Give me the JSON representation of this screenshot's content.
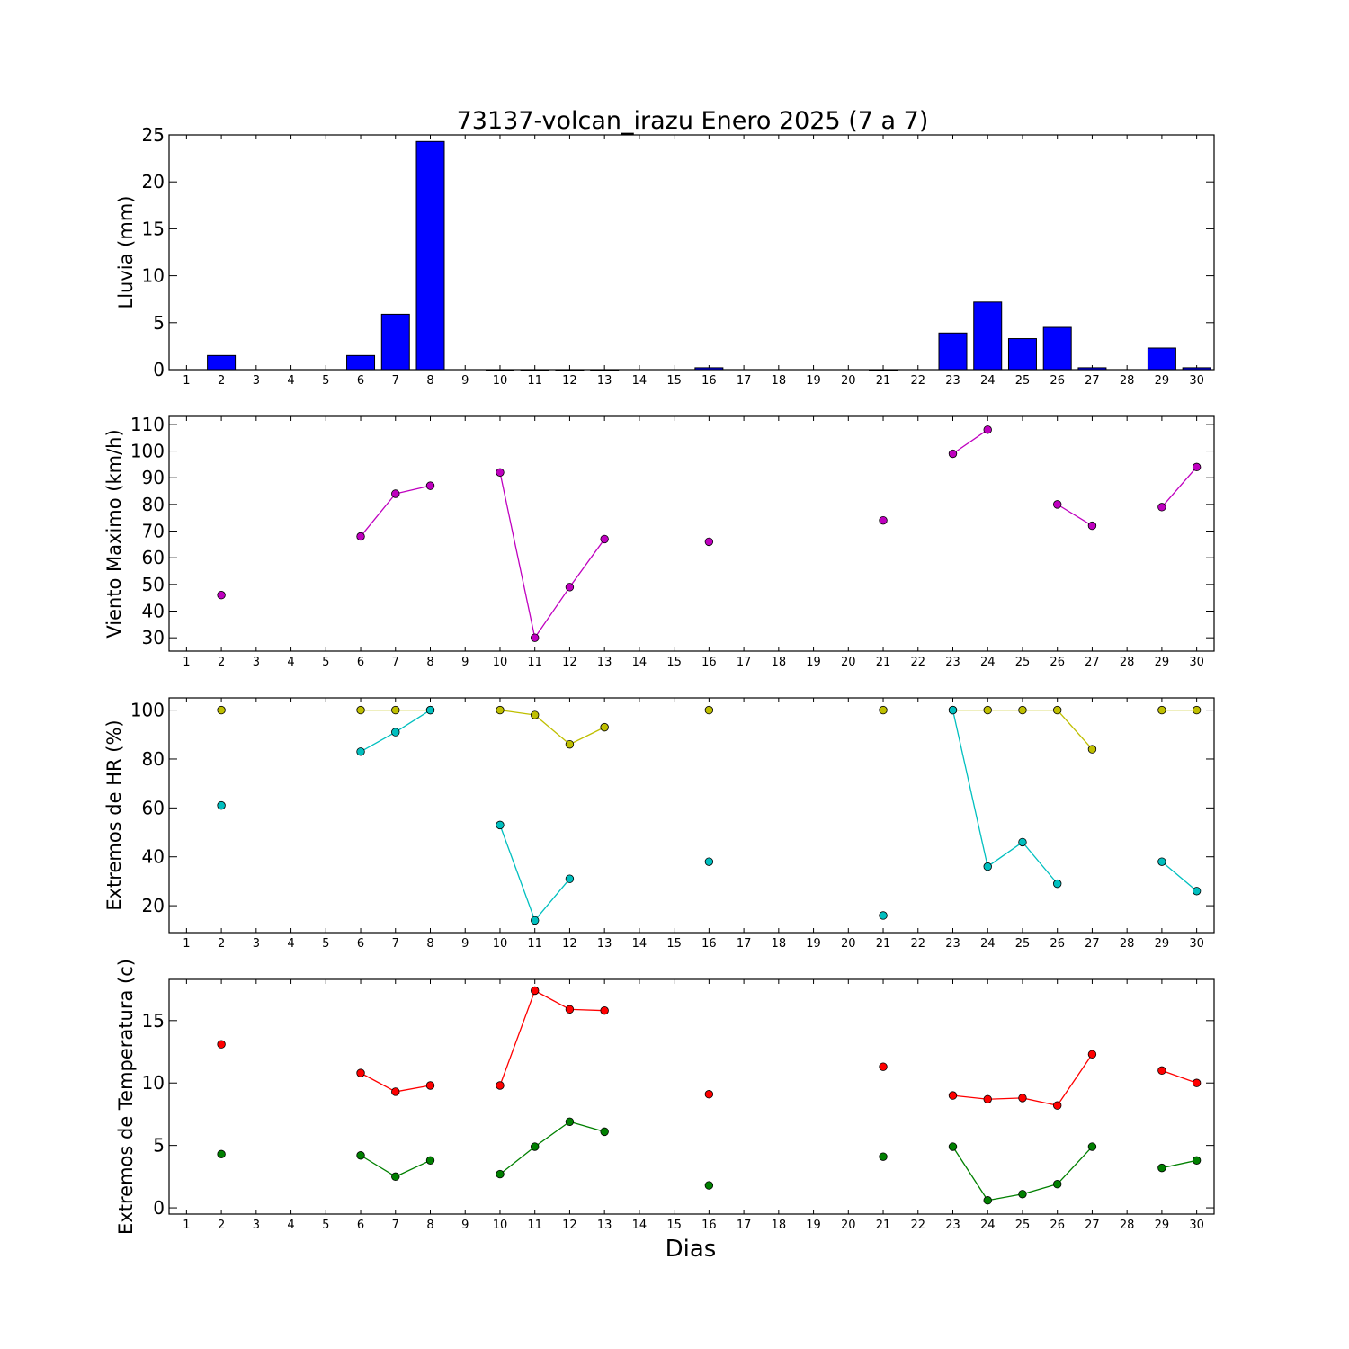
{
  "title": "73137-volcan_irazu Enero 2025  (7 a 7)",
  "xlabel": "Dias",
  "chart_data": [
    {
      "type": "bar",
      "ylabel": "Lluvia (mm)",
      "ylim": [
        0,
        25
      ],
      "yticks": [
        0,
        5,
        10,
        15,
        20,
        25
      ],
      "xlim": [
        0.5,
        30.5
      ],
      "categories": [
        1,
        2,
        3,
        4,
        5,
        6,
        7,
        8,
        9,
        10,
        11,
        12,
        13,
        14,
        15,
        16,
        17,
        18,
        19,
        20,
        21,
        22,
        23,
        24,
        25,
        26,
        27,
        28,
        29,
        30
      ],
      "values": [
        null,
        1.5,
        null,
        null,
        null,
        1.5,
        5.9,
        24.3,
        null,
        0,
        0,
        0,
        0,
        null,
        null,
        0.2,
        null,
        null,
        null,
        null,
        0,
        null,
        3.9,
        7.2,
        3.3,
        4.5,
        0.2,
        null,
        2.3,
        0.2
      ],
      "color": "#0000ff"
    },
    {
      "type": "line",
      "ylabel": "Viento Maximo (km/h)",
      "ylim": [
        25,
        113
      ],
      "yticks": [
        30,
        40,
        50,
        60,
        70,
        80,
        90,
        100,
        110
      ],
      "xlim": [
        0.5,
        30.5
      ],
      "series": [
        {
          "color": "#bf00bf",
          "values": [
            null,
            46,
            null,
            null,
            null,
            68,
            84,
            87,
            null,
            92,
            30,
            49,
            67,
            null,
            null,
            66,
            null,
            null,
            null,
            null,
            74,
            null,
            99,
            108,
            null,
            80,
            72,
            null,
            79,
            94
          ]
        }
      ]
    },
    {
      "type": "line",
      "ylabel": "Extremos de HR (%)",
      "ylim": [
        9,
        105
      ],
      "yticks": [
        20,
        40,
        60,
        80,
        100
      ],
      "xlim": [
        0.5,
        30.5
      ],
      "series": [
        {
          "color": "#bfbf00",
          "values": [
            null,
            100,
            null,
            null,
            null,
            100,
            100,
            100,
            null,
            100,
            98,
            86,
            93,
            null,
            null,
            100,
            null,
            null,
            null,
            null,
            100,
            null,
            100,
            100,
            100,
            100,
            84,
            null,
            100,
            100
          ]
        },
        {
          "color": "#00bfbf",
          "values": [
            null,
            61,
            null,
            null,
            null,
            83,
            91,
            100,
            null,
            53,
            14,
            31,
            null,
            null,
            null,
            38,
            null,
            null,
            null,
            null,
            16,
            null,
            100,
            36,
            46,
            29,
            null,
            null,
            38,
            26
          ]
        }
      ]
    },
    {
      "type": "line",
      "ylabel": "Extremos de Temperatura (c)",
      "ylim": [
        -0.5,
        18.3
      ],
      "yticks": [
        0,
        5,
        10,
        15
      ],
      "xlim": [
        0.5,
        30.5
      ],
      "series": [
        {
          "color": "#ff0000",
          "values": [
            null,
            13.1,
            null,
            null,
            null,
            10.8,
            9.3,
            9.8,
            null,
            9.8,
            17.4,
            15.9,
            15.8,
            null,
            null,
            9.1,
            null,
            null,
            null,
            null,
            11.3,
            null,
            9.0,
            8.7,
            8.8,
            8.2,
            12.3,
            null,
            11.0,
            10.0
          ]
        },
        {
          "color": "#008000",
          "values": [
            null,
            4.3,
            null,
            null,
            null,
            4.2,
            2.5,
            3.8,
            null,
            2.7,
            4.9,
            6.9,
            6.1,
            null,
            null,
            1.8,
            null,
            null,
            null,
            null,
            4.1,
            null,
            4.9,
            0.6,
            1.1,
            1.9,
            4.9,
            null,
            3.2,
            3.8
          ]
        }
      ]
    }
  ]
}
